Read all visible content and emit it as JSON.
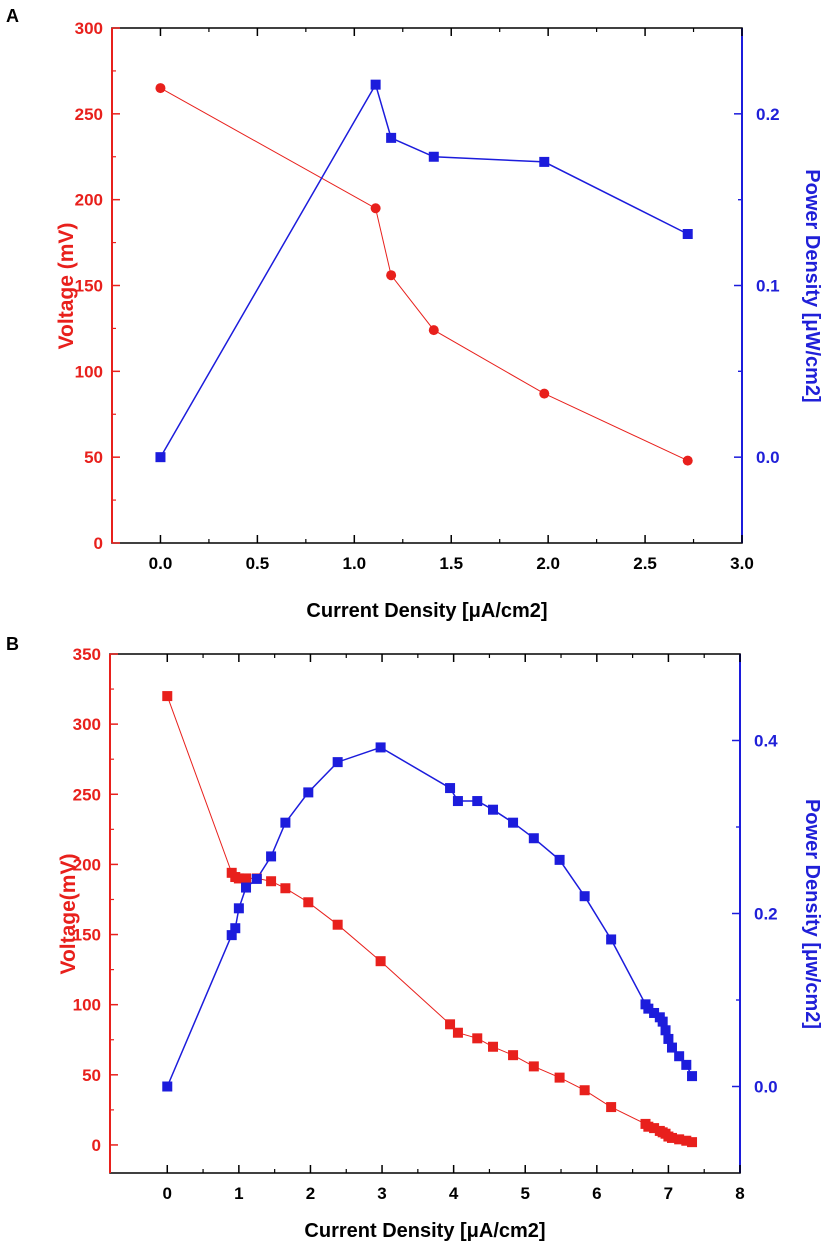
{
  "colors": {
    "voltage": "#e8201c",
    "power": "#1c1cdc",
    "axis_black": "#000000"
  },
  "chart_data": [
    {
      "panel": "A",
      "type": "line",
      "xlabel": "Current Density [μA/cm2]",
      "ylabel": "Voltage (mV)",
      "y2label": "Power Density [μW/cm2]",
      "xlim": [
        -0.25,
        3.0
      ],
      "ylim": [
        0,
        300
      ],
      "y2lim": [
        -0.05,
        0.25
      ],
      "xticks": [
        "0.0",
        "0.5",
        "1.0",
        "1.5",
        "2.0",
        "2.5",
        "3.0"
      ],
      "yticks": [
        "0",
        "50",
        "100",
        "150",
        "200",
        "250",
        "300"
      ],
      "y2ticks": [
        "0.0",
        "0.1",
        "0.2"
      ],
      "series": [
        {
          "axis": "left",
          "marker": "circle",
          "x": [
            0.0,
            1.11,
            1.19,
            1.41,
            1.98,
            2.72
          ],
          "y": [
            265,
            195,
            156,
            124,
            87,
            48
          ]
        },
        {
          "axis": "right",
          "marker": "square",
          "x": [
            0.0,
            1.11,
            1.19,
            1.41,
            1.98,
            2.72
          ],
          "y": [
            0.0,
            0.217,
            0.186,
            0.175,
            0.172,
            0.13
          ]
        }
      ]
    },
    {
      "panel": "B",
      "type": "line",
      "xlabel": "Current Density [μA/cm2]",
      "ylabel": "Voltage(mV)",
      "y2label": "Power Density [μw/cm2]",
      "xlim": [
        -0.8,
        8.0
      ],
      "ylim": [
        -20,
        350
      ],
      "y2lim": [
        -0.1,
        0.5
      ],
      "xticks": [
        "0",
        "1",
        "2",
        "3",
        "4",
        "5",
        "6",
        "7",
        "8"
      ],
      "yticks": [
        "0",
        "50",
        "100",
        "150",
        "200",
        "250",
        "300",
        "350"
      ],
      "y2ticks": [
        "0.0",
        "0.2",
        "0.4"
      ],
      "series": [
        {
          "axis": "left",
          "marker": "square",
          "x": [
            0.0,
            0.9,
            0.95,
            1.0,
            1.1,
            1.25,
            1.45,
            1.65,
            1.97,
            2.38,
            2.98,
            3.95,
            4.06,
            4.33,
            4.55,
            4.83,
            5.12,
            5.48,
            5.83,
            6.2,
            6.68,
            6.72,
            6.8,
            6.88,
            6.92,
            6.96,
            7.0,
            7.05,
            7.15,
            7.25,
            7.33
          ],
          "y": [
            320,
            194,
            191,
            190,
            190,
            190,
            188,
            183,
            173,
            157,
            131,
            86,
            80,
            76,
            70,
            64,
            56,
            48,
            39,
            27,
            15,
            13,
            12,
            10,
            9,
            8,
            6,
            5,
            4,
            3,
            2
          ]
        },
        {
          "axis": "right",
          "marker": "square",
          "x": [
            0.0,
            0.9,
            0.95,
            1.0,
            1.1,
            1.25,
            1.45,
            1.65,
            1.97,
            2.38,
            2.98,
            3.95,
            4.06,
            4.33,
            4.55,
            4.83,
            5.12,
            5.48,
            5.83,
            6.2,
            6.68,
            6.72,
            6.8,
            6.88,
            6.92,
            6.96,
            7.0,
            7.05,
            7.15,
            7.25,
            7.33
          ],
          "y": [
            0.0,
            0.175,
            0.183,
            0.206,
            0.23,
            0.24,
            0.266,
            0.305,
            0.34,
            0.375,
            0.392,
            0.345,
            0.33,
            0.33,
            0.32,
            0.305,
            0.287,
            0.262,
            0.22,
            0.17,
            0.095,
            0.09,
            0.085,
            0.08,
            0.075,
            0.065,
            0.055,
            0.045,
            0.035,
            0.025,
            0.012
          ]
        }
      ]
    }
  ]
}
